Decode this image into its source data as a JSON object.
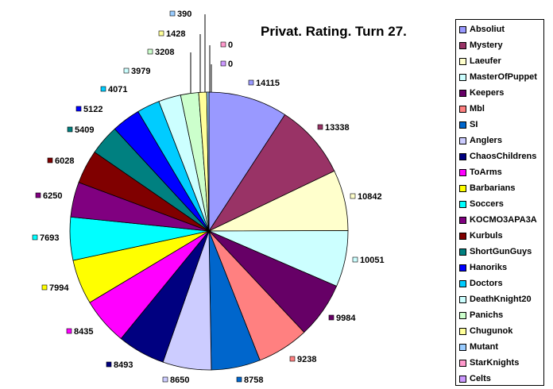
{
  "chart_data": {
    "type": "pie",
    "title": "Privat. Rating. Turn 27.",
    "legend_position": "right",
    "slices": [
      {
        "name": "Absoliut",
        "value": 14115,
        "color": "#9999ff"
      },
      {
        "name": "Mystery",
        "value": 13338,
        "color": "#993366"
      },
      {
        "name": "Laeufer",
        "value": 10842,
        "color": "#ffffcc"
      },
      {
        "name": "MasterOfPuppet",
        "value": 10051,
        "color": "#ccffff"
      },
      {
        "name": "Keepers",
        "value": 9984,
        "color": "#660066"
      },
      {
        "name": "Mbl",
        "value": 9238,
        "color": "#ff8080"
      },
      {
        "name": "SI",
        "value": 8758,
        "color": "#0066cc"
      },
      {
        "name": "Anglers",
        "value": 8650,
        "color": "#ccccff"
      },
      {
        "name": "ChaosChildrens",
        "value": 8493,
        "color": "#000080"
      },
      {
        "name": "ToArms",
        "value": 8435,
        "color": "#ff00ff"
      },
      {
        "name": "Barbarians",
        "value": 7994,
        "color": "#ffff00"
      },
      {
        "name": "Soccers",
        "value": 7693,
        "color": "#00ffff"
      },
      {
        "name": "KOCMO3APA3A",
        "value": 6250,
        "color": "#800080"
      },
      {
        "name": "Kurbuls",
        "value": 6028,
        "color": "#800000"
      },
      {
        "name": "ShortGunGuys",
        "value": 5409,
        "color": "#008080"
      },
      {
        "name": "Hanoriks",
        "value": 5122,
        "color": "#0000ff"
      },
      {
        "name": "Doctors",
        "value": 4071,
        "color": "#00ccff"
      },
      {
        "name": "DeathKnight20",
        "value": 3979,
        "color": "#ccffff"
      },
      {
        "name": "Panichs",
        "value": 3208,
        "color": "#ccffcc"
      },
      {
        "name": "Chugunok",
        "value": 1428,
        "color": "#ffff99"
      },
      {
        "name": "Mutant",
        "value": 390,
        "color": "#99ccff"
      },
      {
        "name": "StarKnights",
        "value": 0,
        "color": "#ff99cc"
      },
      {
        "name": "Celts",
        "value": 0,
        "color": "#cc99ff"
      }
    ]
  }
}
